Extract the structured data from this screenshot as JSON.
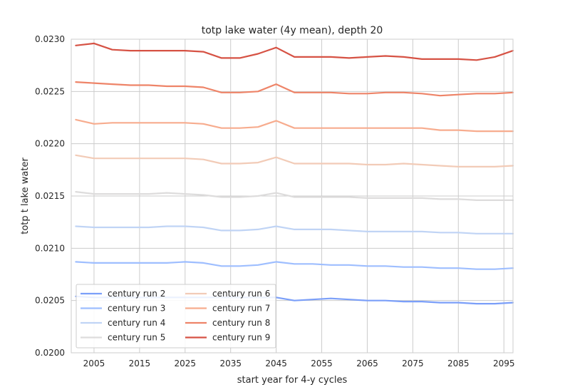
{
  "chart_data": {
    "type": "line",
    "title": "totp lake water (4y mean), depth 20",
    "xlabel": "start year for 4-y cycles",
    "ylabel": "totp t lake water",
    "xlim": [
      2000,
      2097
    ],
    "ylim": [
      0.02,
      0.023
    ],
    "xticks": [
      2005,
      2015,
      2025,
      2035,
      2045,
      2055,
      2065,
      2075,
      2085,
      2095
    ],
    "yticks": [
      "0.0200",
      "0.0205",
      "0.0210",
      "0.0215",
      "0.0220",
      "0.0225",
      "0.0230"
    ],
    "grid": true,
    "legend_placement": "lower-left",
    "x": [
      2001,
      2005,
      2009,
      2013,
      2017,
      2021,
      2025,
      2029,
      2033,
      2037,
      2041,
      2045,
      2049,
      2053,
      2057,
      2061,
      2065,
      2069,
      2073,
      2077,
      2081,
      2085,
      2089,
      2093,
      2097
    ],
    "series": [
      {
        "name": "century run 2",
        "color": "#7b9ff9",
        "values": [
          0.02054,
          0.02053,
          0.02053,
          0.02053,
          0.02053,
          0.02053,
          0.02053,
          0.02053,
          0.02053,
          0.02053,
          0.02053,
          0.02053,
          0.0205,
          0.02051,
          0.02052,
          0.02051,
          0.0205,
          0.0205,
          0.02049,
          0.02049,
          0.02048,
          0.02048,
          0.02047,
          0.02047,
          0.02048
        ]
      },
      {
        "name": "century run 3",
        "color": "#9ebeff",
        "values": [
          0.02087,
          0.02086,
          0.02086,
          0.02086,
          0.02086,
          0.02086,
          0.02087,
          0.02086,
          0.02083,
          0.02083,
          0.02084,
          0.02087,
          0.02085,
          0.02085,
          0.02084,
          0.02084,
          0.02083,
          0.02083,
          0.02082,
          0.02082,
          0.02081,
          0.02081,
          0.0208,
          0.0208,
          0.02081
        ]
      },
      {
        "name": "century run 4",
        "color": "#c0d4f5",
        "values": [
          0.02121,
          0.0212,
          0.0212,
          0.0212,
          0.0212,
          0.02121,
          0.02121,
          0.0212,
          0.02117,
          0.02117,
          0.02118,
          0.02121,
          0.02118,
          0.02118,
          0.02118,
          0.02117,
          0.02116,
          0.02116,
          0.02116,
          0.02116,
          0.02115,
          0.02115,
          0.02114,
          0.02114,
          0.02114
        ]
      },
      {
        "name": "century run 5",
        "color": "#dddcdc",
        "values": [
          0.02154,
          0.02152,
          0.02152,
          0.02152,
          0.02152,
          0.02153,
          0.02152,
          0.02151,
          0.02149,
          0.02149,
          0.0215,
          0.02153,
          0.02149,
          0.02149,
          0.02149,
          0.02149,
          0.02148,
          0.02148,
          0.02148,
          0.02148,
          0.02147,
          0.02147,
          0.02146,
          0.02146,
          0.02146
        ]
      },
      {
        "name": "century run 6",
        "color": "#f2cbb7",
        "values": [
          0.02189,
          0.02186,
          0.02186,
          0.02186,
          0.02186,
          0.02186,
          0.02186,
          0.02185,
          0.02181,
          0.02181,
          0.02182,
          0.02187,
          0.02181,
          0.02181,
          0.02181,
          0.02181,
          0.0218,
          0.0218,
          0.02181,
          0.0218,
          0.02179,
          0.02178,
          0.02178,
          0.02178,
          0.02179
        ]
      },
      {
        "name": "century run 7",
        "color": "#f7ac8e",
        "values": [
          0.02223,
          0.02219,
          0.0222,
          0.0222,
          0.0222,
          0.0222,
          0.0222,
          0.02219,
          0.02215,
          0.02215,
          0.02216,
          0.02222,
          0.02215,
          0.02215,
          0.02215,
          0.02215,
          0.02215,
          0.02215,
          0.02215,
          0.02215,
          0.02213,
          0.02213,
          0.02212,
          0.02212,
          0.02212
        ]
      },
      {
        "name": "century run 8",
        "color": "#ee8468",
        "values": [
          0.02259,
          0.02258,
          0.02257,
          0.02256,
          0.02256,
          0.02255,
          0.02255,
          0.02254,
          0.02249,
          0.02249,
          0.0225,
          0.02257,
          0.02249,
          0.02249,
          0.02249,
          0.02248,
          0.02248,
          0.02249,
          0.02249,
          0.02248,
          0.02246,
          0.02247,
          0.02248,
          0.02248,
          0.02249
        ]
      },
      {
        "name": "century run 9",
        "color": "#d65244",
        "values": [
          0.02294,
          0.02296,
          0.0229,
          0.02289,
          0.02289,
          0.02289,
          0.02289,
          0.02288,
          0.02282,
          0.02282,
          0.02286,
          0.02292,
          0.02283,
          0.02283,
          0.02283,
          0.02282,
          0.02283,
          0.02284,
          0.02283,
          0.02281,
          0.02281,
          0.02281,
          0.0228,
          0.02283,
          0.02289
        ]
      }
    ]
  }
}
